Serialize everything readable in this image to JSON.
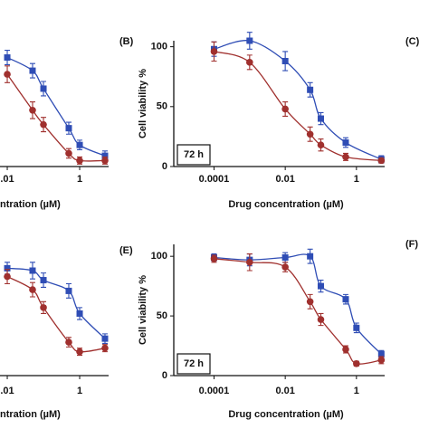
{
  "chart_data": [
    {
      "type": "scatter",
      "xlog": true,
      "xlabel": "ntration (µM)",
      "x": [
        0.01,
        0.05,
        0.1,
        0.5,
        1,
        5
      ],
      "xlim": [
        0.0063,
        6.3
      ],
      "xticks": [
        {
          "value": 0.01,
          "label": ".01"
        },
        1
      ],
      "ylim": [
        0,
        105
      ],
      "series": [
        {
          "name": "blue",
          "color": "#2f4db5",
          "marker": "square",
          "values": [
            91,
            80,
            65,
            32,
            18,
            9
          ],
          "errors": [
            6,
            6,
            6,
            5,
            4,
            4
          ]
        },
        {
          "name": "red",
          "color": "#a0302e",
          "marker": "circle",
          "values": [
            77,
            47,
            35,
            11,
            5,
            5
          ],
          "errors": [
            7,
            7,
            6,
            4,
            3,
            3
          ]
        }
      ]
    },
    {
      "type": "scatter",
      "xlog": true,
      "xlabel": "Drug concentration (µM)",
      "ylabel": "Cell viability %",
      "annotation": "72 h",
      "x": [
        0.0001,
        0.001,
        0.01,
        0.05,
        0.1,
        0.5,
        5
      ],
      "xlim": [
        7.4e-06,
        6.2
      ],
      "xticks": [
        0.0001,
        0.01,
        1
      ],
      "ylim": [
        0,
        105
      ],
      "yticks": [
        0,
        50,
        100
      ],
      "series": [
        {
          "name": "blue",
          "color": "#2f4db5",
          "marker": "square",
          "values": [
            98,
            105,
            88,
            64,
            40,
            20,
            6
          ],
          "errors": [
            6,
            7,
            8,
            6,
            5,
            4,
            3
          ]
        },
        {
          "name": "red",
          "color": "#a0302e",
          "marker": "circle",
          "values": [
            96,
            87,
            48,
            27,
            18,
            8,
            5
          ],
          "errors": [
            8,
            6,
            6,
            6,
            5,
            3,
            2
          ]
        }
      ]
    },
    {
      "type": "scatter",
      "xlog": true,
      "xlabel": "ntration (µM)",
      "x": [
        0.01,
        0.05,
        0.1,
        0.5,
        1,
        5
      ],
      "xlim": [
        0.0063,
        6.3
      ],
      "xticks": [
        {
          "value": 0.01,
          "label": ".01"
        },
        1
      ],
      "ylim": [
        0,
        110
      ],
      "series": [
        {
          "name": "blue",
          "color": "#2f4db5",
          "marker": "square",
          "values": [
            90,
            88,
            80,
            71,
            52,
            31
          ],
          "errors": [
            5,
            7,
            6,
            6,
            5,
            4
          ]
        },
        {
          "name": "red",
          "color": "#a0302e",
          "marker": "circle",
          "values": [
            83,
            72,
            57,
            28,
            20,
            23
          ],
          "errors": [
            6,
            6,
            5,
            4,
            3,
            3
          ]
        }
      ]
    },
    {
      "type": "scatter",
      "xlog": true,
      "xlabel": "Drug concentration (µM)",
      "ylabel": "Cell viability %",
      "annotation": "72 h",
      "x": [
        0.0001,
        0.001,
        0.01,
        0.05,
        0.1,
        0.5,
        1,
        5
      ],
      "xlim": [
        7.4e-06,
        6.2
      ],
      "xticks": [
        0.0001,
        0.01,
        1
      ],
      "ylim": [
        0,
        110
      ],
      "yticks": [
        0,
        50,
        100
      ],
      "series": [
        {
          "name": "blue",
          "color": "#2f4db5",
          "marker": "square",
          "values": [
            99,
            97,
            99,
            100,
            75,
            64,
            40,
            18
          ],
          "errors": [
            3,
            5,
            4,
            6,
            5,
            4,
            4,
            3
          ]
        },
        {
          "name": "red",
          "color": "#a0302e",
          "marker": "circle",
          "values": [
            98,
            95,
            91,
            62,
            47,
            22,
            10,
            13
          ],
          "errors": [
            3,
            7,
            4,
            6,
            5,
            3,
            2,
            3
          ]
        }
      ]
    }
  ],
  "panel_labels": [
    "(B)",
    "(C)",
    "(E)",
    "(F)"
  ]
}
